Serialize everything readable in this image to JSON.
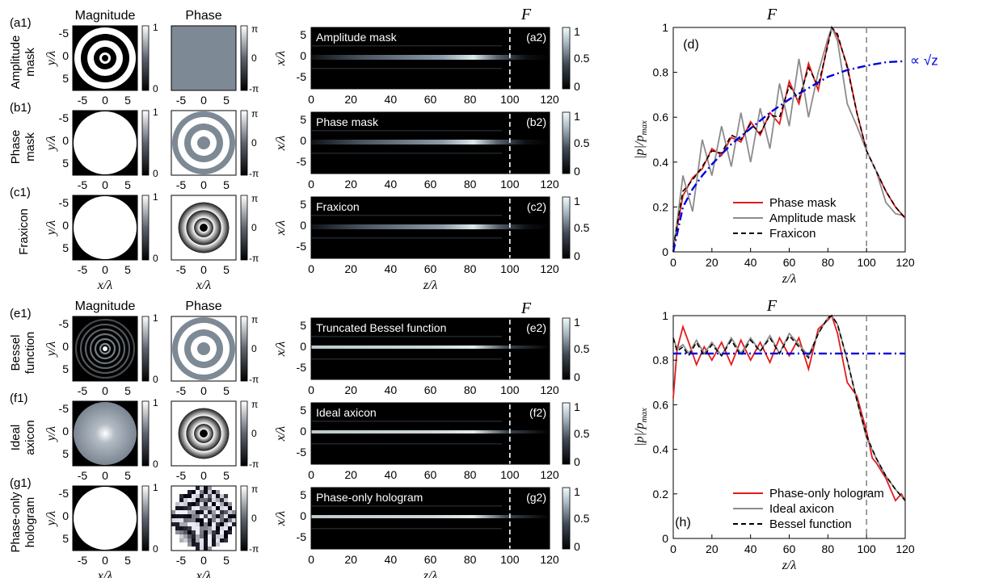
{
  "figure": {
    "top_col_titles": [
      "Magnitude",
      "Phase"
    ],
    "bottom_col_titles": [
      "Magnitude",
      "Phase"
    ],
    "focus_label": "F"
  },
  "rows": [
    {
      "id": "a1",
      "label": "(a1)",
      "side": [
        "Amplitude",
        "mask"
      ],
      "mag": "rings",
      "phase": "flat",
      "sim_id": "(a2)",
      "sim_title": "Amplitude mask",
      "beam": "wide"
    },
    {
      "id": "b1",
      "label": "(b1)",
      "side": [
        "Phase",
        "mask"
      ],
      "mag": "disk",
      "phase": "rings",
      "sim_id": "(b2)",
      "sim_title": "Phase mask",
      "beam": "wide"
    },
    {
      "id": "c1",
      "label": "(c1)",
      "side": [
        "Fraxicon"
      ],
      "mag": "disk",
      "phase": "vortex",
      "sim_id": "(c2)",
      "sim_title": "Fraxicon",
      "beam": "wide"
    },
    {
      "id": "e1",
      "label": "(e1)",
      "side": [
        "Bessel",
        "function"
      ],
      "mag": "bessel",
      "phase": "rings",
      "sim_id": "(e2)",
      "sim_title": "Truncated Bessel function",
      "beam": "thin"
    },
    {
      "id": "f1",
      "label": "(f1)",
      "side": [
        "Ideal",
        "axicon"
      ],
      "mag": "glow",
      "phase": "vortex",
      "sim_id": "(f2)",
      "sim_title": "Ideal axicon",
      "beam": "thin"
    },
    {
      "id": "g1",
      "label": "(g1)",
      "side": [
        "Phase-only",
        "hologram"
      ],
      "mag": "disk",
      "phase": "pixel",
      "sim_id": "(g2)",
      "sim_title": "Phase-only hologram",
      "beam": "thin"
    }
  ],
  "axes": {
    "ylabel_small": "y/λ",
    "xlabel_small": "x/λ",
    "ylabel_sim": "x/λ",
    "xlabel_sim": "z/λ",
    "small_ticks": [
      "-5",
      "0",
      "5"
    ],
    "sim_yticks": [
      "5",
      "0",
      "-5"
    ],
    "sim_xticks": [
      "0",
      "20",
      "40",
      "60",
      "80",
      "100",
      "120"
    ],
    "mag_cbar": [
      "1",
      "0"
    ],
    "phase_cbar": [
      "π",
      "0",
      "-π"
    ],
    "sim_cbar": [
      "1",
      "0.5",
      "0"
    ],
    "ylabel_plot": "|p|/p_max",
    "xlabel_plot": "z/λ"
  },
  "colors": {
    "red": "#e41a1c",
    "gray": "#8c8c8c",
    "black": "#000000",
    "blue": "#0000e0",
    "phase_gray": "#7e8996",
    "dashed_focus": "#888888"
  },
  "chart_data": [
    {
      "type": "line",
      "panel": "(d)",
      "xlabel": "z/λ",
      "ylabel": "|p|/p_max",
      "xlim": [
        0,
        120
      ],
      "ylim": [
        0,
        1
      ],
      "xticks": [
        0,
        20,
        40,
        60,
        80,
        100,
        120
      ],
      "yticks": [
        0,
        0.2,
        0.4,
        0.6,
        0.8,
        1
      ],
      "focus_line": 100,
      "annotation": "∝ √z",
      "legend_position": "lower-middle",
      "series": [
        {
          "name": "Phase mask",
          "color": "#e41a1c",
          "style": "solid",
          "x": [
            0,
            5,
            10,
            15,
            20,
            25,
            30,
            35,
            40,
            45,
            50,
            55,
            60,
            65,
            70,
            75,
            80,
            82,
            85,
            90,
            95,
            100,
            105,
            110,
            115,
            120
          ],
          "y": [
            0.02,
            0.25,
            0.33,
            0.37,
            0.46,
            0.43,
            0.51,
            0.49,
            0.58,
            0.52,
            0.62,
            0.57,
            0.76,
            0.66,
            0.84,
            0.72,
            0.93,
            1.0,
            0.96,
            0.83,
            0.62,
            0.45,
            0.36,
            0.27,
            0.2,
            0.15
          ]
        },
        {
          "name": "Amplitude mask",
          "color": "#8c8c8c",
          "style": "solid",
          "x": [
            0,
            5,
            10,
            15,
            20,
            25,
            30,
            35,
            40,
            45,
            50,
            55,
            60,
            65,
            70,
            75,
            80,
            82,
            85,
            90,
            95,
            100,
            105,
            110,
            115,
            120
          ],
          "y": [
            0.0,
            0.34,
            0.18,
            0.5,
            0.34,
            0.56,
            0.38,
            0.62,
            0.4,
            0.64,
            0.46,
            0.75,
            0.56,
            0.86,
            0.6,
            0.8,
            0.95,
            1.0,
            0.94,
            0.66,
            0.56,
            0.45,
            0.36,
            0.22,
            0.17,
            0.16
          ]
        },
        {
          "name": "Fraxicon",
          "color": "#000000",
          "style": "dashed",
          "x": [
            0,
            5,
            10,
            15,
            20,
            25,
            30,
            35,
            40,
            45,
            50,
            55,
            60,
            65,
            70,
            75,
            80,
            82,
            85,
            90,
            95,
            100,
            105,
            110,
            115,
            120
          ],
          "y": [
            0.02,
            0.27,
            0.32,
            0.38,
            0.45,
            0.44,
            0.52,
            0.5,
            0.57,
            0.53,
            0.61,
            0.6,
            0.74,
            0.68,
            0.82,
            0.74,
            0.92,
            1.0,
            0.97,
            0.82,
            0.62,
            0.45,
            0.36,
            0.27,
            0.2,
            0.15
          ]
        },
        {
          "name": "",
          "color": "#0000e0",
          "style": "dashdot",
          "x": [
            0,
            5,
            10,
            15,
            20,
            30,
            40,
            50,
            60,
            70,
            80,
            90,
            100,
            110,
            120
          ],
          "y": [
            0.0,
            0.2,
            0.28,
            0.34,
            0.39,
            0.48,
            0.55,
            0.62,
            0.68,
            0.73,
            0.78,
            0.81,
            0.83,
            0.845,
            0.85
          ]
        }
      ]
    },
    {
      "type": "line",
      "panel": "(h)",
      "xlabel": "z/λ",
      "ylabel": "|p|/p_max",
      "xlim": [
        0,
        120
      ],
      "ylim": [
        0,
        1
      ],
      "xticks": [
        0,
        20,
        40,
        60,
        80,
        100,
        120
      ],
      "yticks": [
        0,
        0.2,
        0.4,
        0.6,
        0.8,
        1
      ],
      "focus_line": 100,
      "legend_position": "lower-middle",
      "series": [
        {
          "name": "Phase-only hologram",
          "color": "#e41a1c",
          "style": "solid",
          "x": [
            0,
            2,
            5,
            8,
            12,
            16,
            20,
            25,
            30,
            35,
            40,
            45,
            50,
            55,
            60,
            65,
            70,
            75,
            80,
            82,
            85,
            90,
            95,
            100,
            103,
            105,
            110,
            115,
            118,
            120
          ],
          "y": [
            0.63,
            0.85,
            0.95,
            0.88,
            0.78,
            0.86,
            0.8,
            0.88,
            0.78,
            0.89,
            0.8,
            0.88,
            0.79,
            0.9,
            0.82,
            0.9,
            0.76,
            0.94,
            0.98,
            1.0,
            0.92,
            0.7,
            0.64,
            0.48,
            0.36,
            0.34,
            0.27,
            0.17,
            0.2,
            0.17
          ]
        },
        {
          "name": "Ideal axicon",
          "color": "#8c8c8c",
          "style": "solid",
          "x": [
            0,
            2,
            5,
            8,
            12,
            16,
            20,
            25,
            30,
            35,
            40,
            45,
            50,
            55,
            60,
            65,
            70,
            75,
            80,
            82,
            85,
            90,
            95,
            100,
            105,
            110,
            115,
            120
          ],
          "y": [
            0.9,
            0.85,
            0.87,
            0.83,
            0.89,
            0.83,
            0.88,
            0.82,
            0.9,
            0.83,
            0.9,
            0.84,
            0.91,
            0.83,
            0.92,
            0.87,
            0.82,
            0.92,
            0.99,
            1.0,
            0.96,
            0.8,
            0.62,
            0.45,
            0.36,
            0.28,
            0.22,
            0.17
          ]
        },
        {
          "name": "Bessel function",
          "color": "#000000",
          "style": "dashed",
          "x": [
            0,
            2,
            5,
            8,
            12,
            16,
            20,
            25,
            30,
            35,
            40,
            45,
            50,
            55,
            60,
            65,
            70,
            75,
            80,
            82,
            85,
            90,
            95,
            100,
            105,
            110,
            115,
            120
          ],
          "y": [
            0.9,
            0.84,
            0.86,
            0.82,
            0.88,
            0.82,
            0.87,
            0.82,
            0.89,
            0.82,
            0.89,
            0.84,
            0.9,
            0.83,
            0.91,
            0.86,
            0.81,
            0.92,
            0.99,
            1.0,
            0.96,
            0.8,
            0.62,
            0.46,
            0.36,
            0.28,
            0.22,
            0.17
          ]
        },
        {
          "name": "",
          "color": "#0000e0",
          "style": "dashdot",
          "x": [
            0,
            120
          ],
          "y": [
            0.83,
            0.83
          ]
        }
      ]
    }
  ]
}
